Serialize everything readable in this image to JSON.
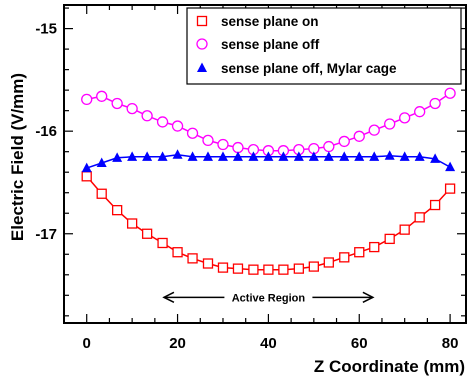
{
  "chart_data": {
    "type": "line",
    "xlabel": "Z Coordinate (mm)",
    "ylabel": "Electric Field (V/mm)",
    "xlim": [
      -5,
      83.5
    ],
    "ylim": [
      -17.87,
      -14.77
    ],
    "x_ticks": [
      0,
      20,
      40,
      60,
      80
    ],
    "x_tick_labels": [
      "0",
      "20",
      "40",
      "60",
      "80"
    ],
    "y_ticks": [
      -15,
      -16,
      -17
    ],
    "y_tick_labels": [
      "-15",
      "-16",
      "-17"
    ],
    "grid": false,
    "legend_position": "top-right",
    "colors": {
      "sense_on": "#ff0000",
      "sense_off": "#ff00ff",
      "mylar": "#0000ff",
      "axis": "#000000"
    },
    "series": [
      {
        "name": "sense plane on",
        "marker": "open-square",
        "x": [
          0,
          3.3,
          6.7,
          10,
          13.3,
          16.7,
          20,
          23.3,
          26.7,
          30,
          33.3,
          36.7,
          40,
          43.3,
          46.7,
          50,
          53.3,
          56.7,
          60,
          63.3,
          66.7,
          70,
          73.3,
          76.7,
          80
        ],
        "y": [
          -16.44,
          -16.61,
          -16.77,
          -16.9,
          -17.0,
          -17.09,
          -17.18,
          -17.24,
          -17.29,
          -17.33,
          -17.34,
          -17.35,
          -17.35,
          -17.35,
          -17.34,
          -17.32,
          -17.28,
          -17.23,
          -17.18,
          -17.13,
          -17.05,
          -16.96,
          -16.84,
          -16.72,
          -16.56
        ]
      },
      {
        "name": "sense plane off",
        "marker": "open-circle",
        "x": [
          0,
          3.3,
          6.7,
          10,
          13.3,
          16.7,
          20,
          23.3,
          26.7,
          30,
          33.3,
          36.7,
          40,
          43.3,
          46.7,
          50,
          53.3,
          56.7,
          60,
          63.3,
          66.7,
          70,
          73.3,
          76.7,
          80
        ],
        "y": [
          -15.69,
          -15.66,
          -15.73,
          -15.78,
          -15.85,
          -15.91,
          -15.95,
          -16.02,
          -16.09,
          -16.13,
          -16.16,
          -16.18,
          -16.19,
          -16.19,
          -16.18,
          -16.17,
          -16.15,
          -16.1,
          -16.05,
          -15.99,
          -15.93,
          -15.87,
          -15.81,
          -15.73,
          -15.63
        ]
      },
      {
        "name": "sense plane off, Mylar cage",
        "marker": "filled-triangle",
        "x": [
          0,
          3.3,
          6.7,
          10,
          13.3,
          16.7,
          20,
          23.3,
          26.7,
          30,
          33.3,
          36.7,
          40,
          43.3,
          46.7,
          50,
          53.3,
          56.7,
          60,
          63.3,
          66.7,
          70,
          73.3,
          76.7,
          80
        ],
        "y": [
          -16.36,
          -16.31,
          -16.26,
          -16.25,
          -16.25,
          -16.25,
          -16.23,
          -16.25,
          -16.25,
          -16.25,
          -16.25,
          -16.25,
          -16.25,
          -16.25,
          -16.25,
          -16.25,
          -16.25,
          -16.25,
          -16.25,
          -16.25,
          -16.24,
          -16.25,
          -16.25,
          -16.27,
          -16.35
        ]
      }
    ],
    "annotation": {
      "text": "Active Region",
      "x_range": [
        17,
        63
      ],
      "y": -17.62
    }
  }
}
